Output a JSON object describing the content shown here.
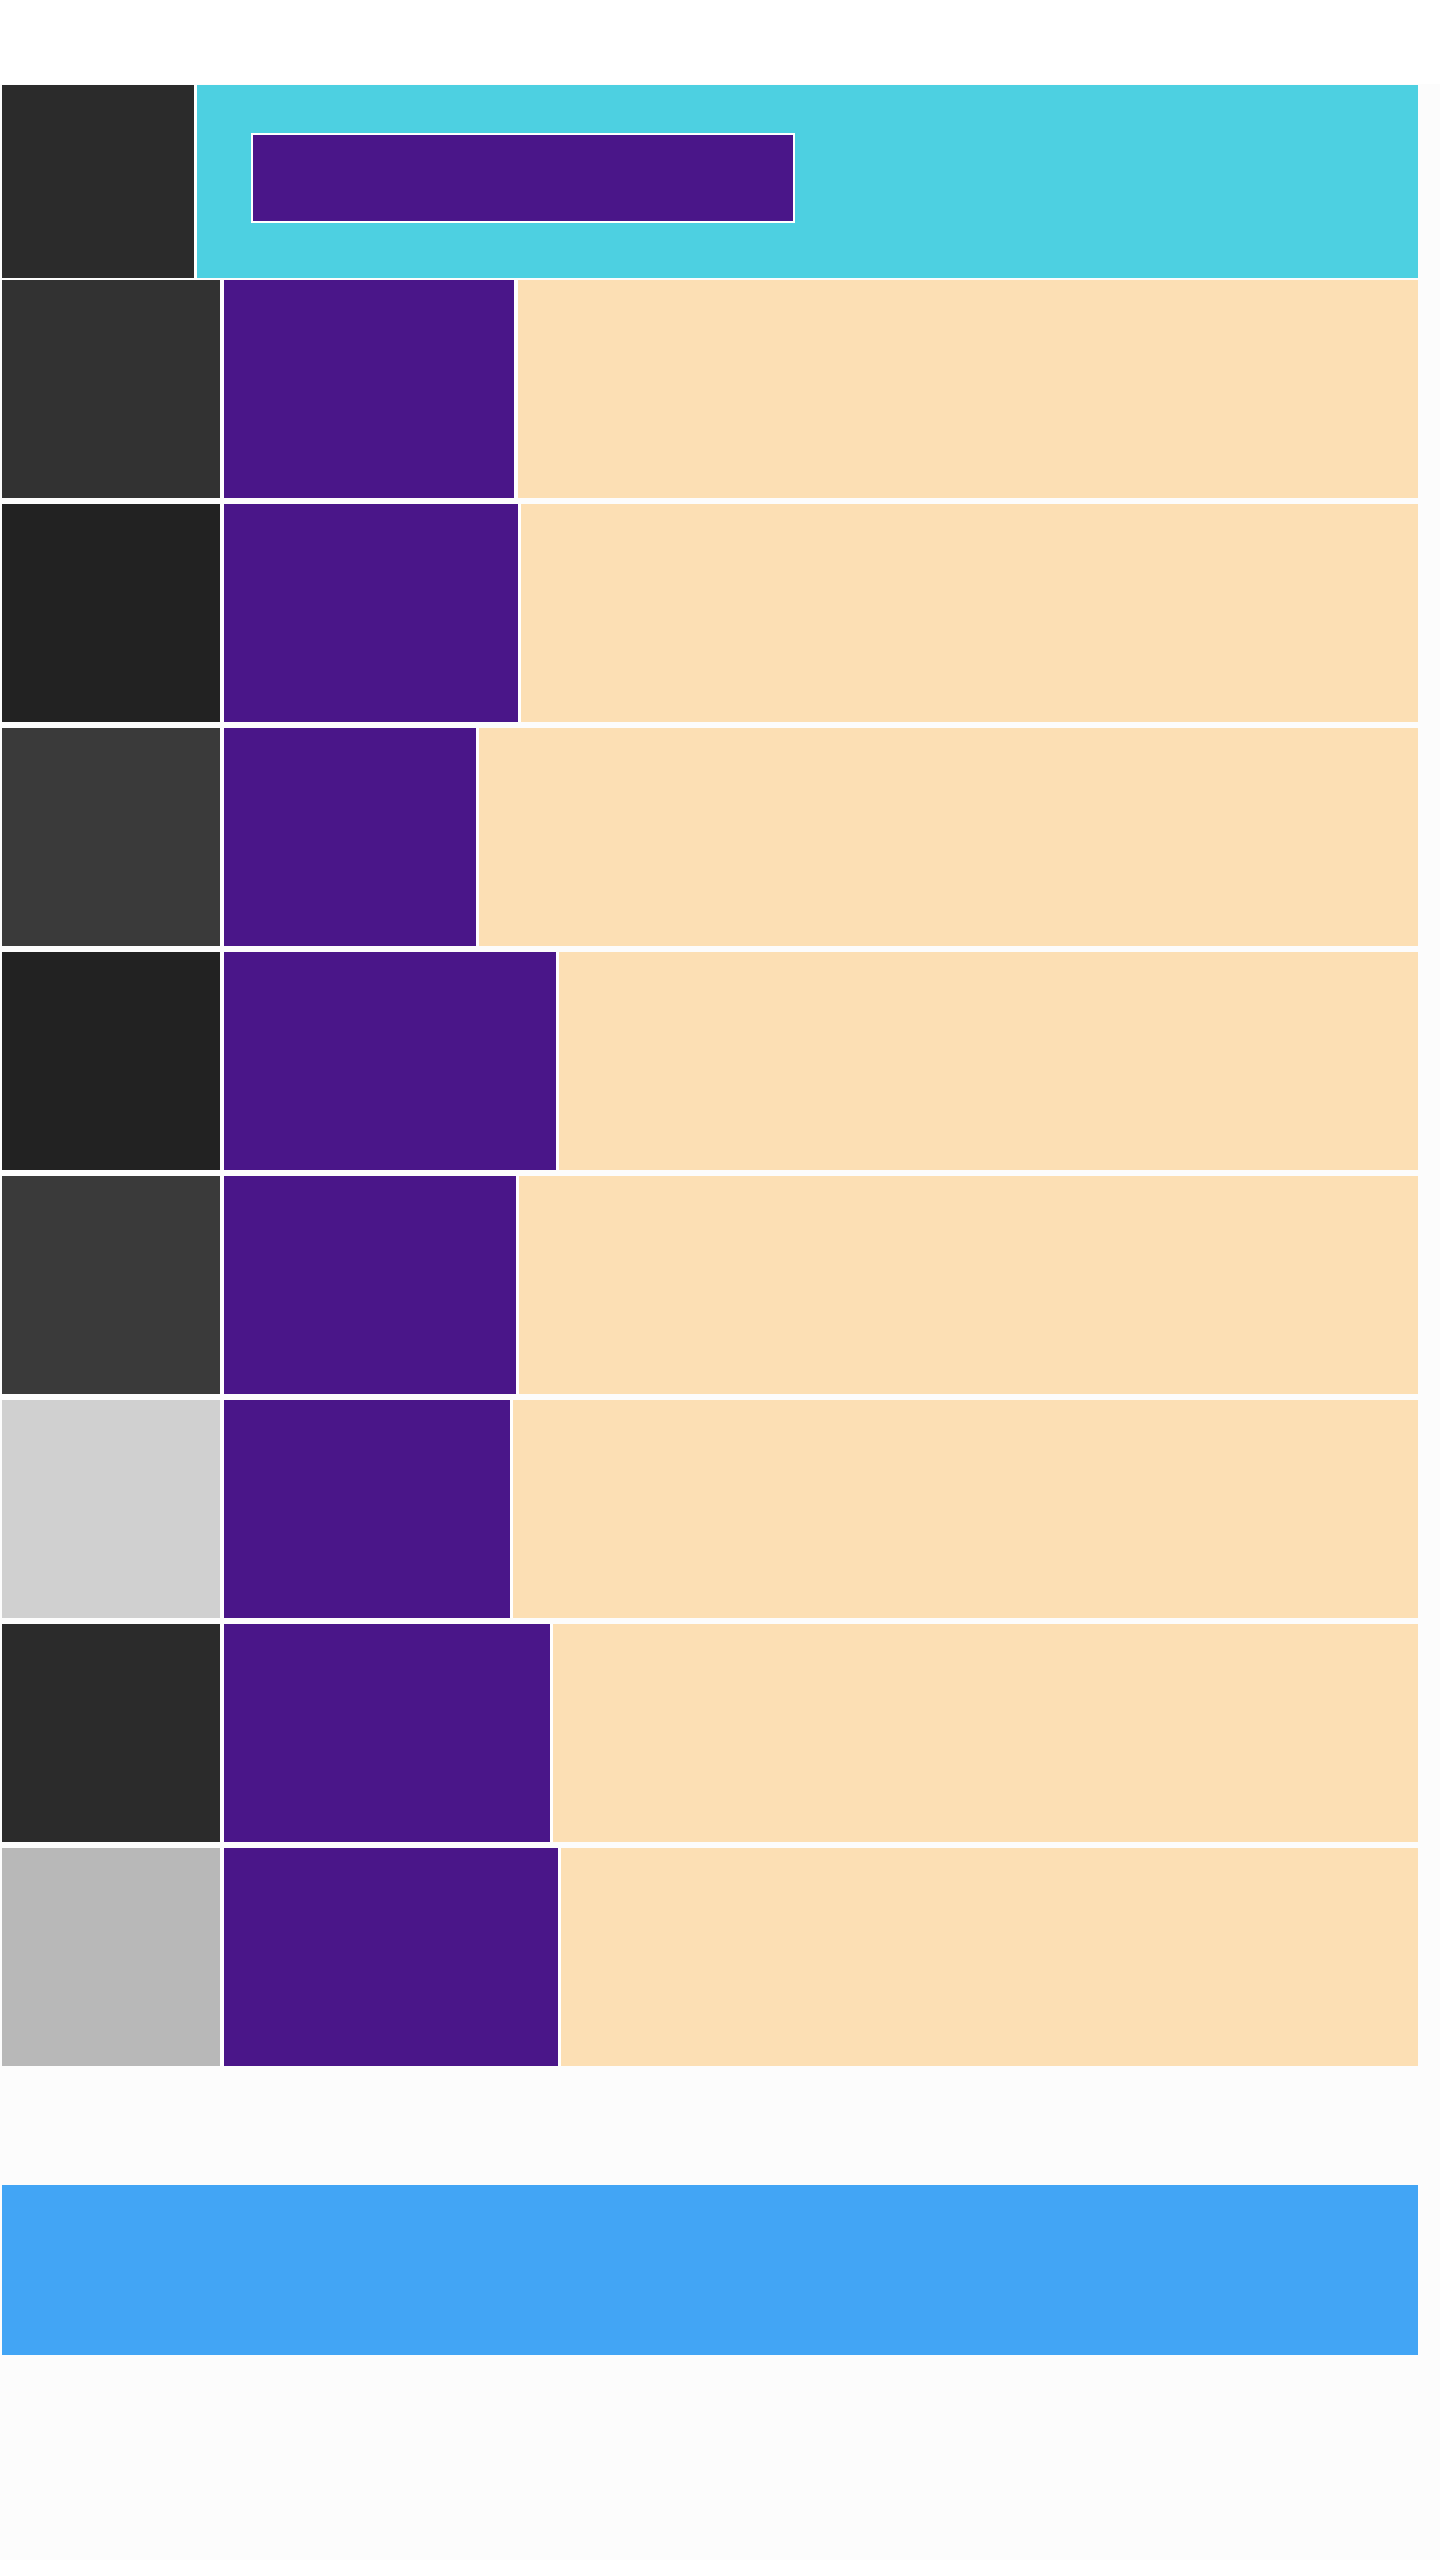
{
  "colors": {
    "header_banner": "#4dd0e1",
    "header_thumb": "#2b2b2b",
    "header_title_bg": "#4a1689",
    "row_block": "#4a1689",
    "row_rest": "#fcdfb4",
    "footer_bar": "#42a5f5"
  },
  "header": {
    "title": ""
  },
  "rows": [
    {
      "label": "",
      "thumb_color": "#323232"
    },
    {
      "label": "",
      "thumb_color": "#222222"
    },
    {
      "label": "",
      "thumb_color": "#3a3a3a"
    },
    {
      "label": "",
      "thumb_color": "#222222"
    },
    {
      "label": "",
      "thumb_color": "#3a3a3a"
    },
    {
      "label": "",
      "thumb_color": "#d0d0d0"
    },
    {
      "label": "",
      "thumb_color": "#2b2b2b"
    },
    {
      "label": "",
      "thumb_color": "#b8b8b8"
    }
  ],
  "footer": {
    "label": ""
  }
}
